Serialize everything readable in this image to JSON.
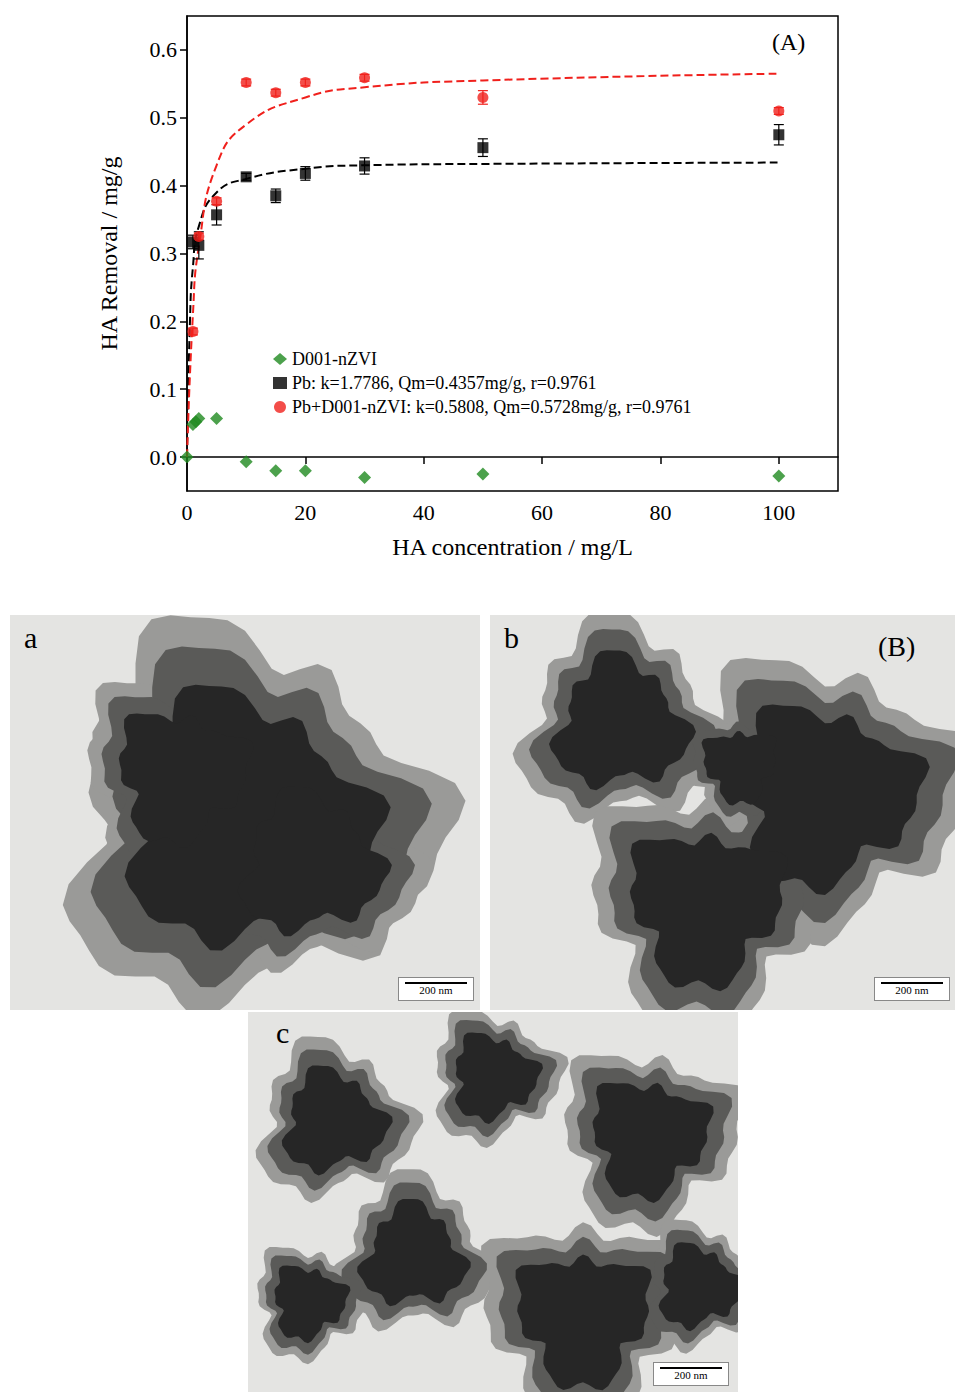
{
  "chart_data": {
    "type": "scatter",
    "annotation": "(A)",
    "x_label": "HA concentration / mg/L",
    "y_label": "HA Removal / mg/g",
    "xlim": [
      0,
      110
    ],
    "xticks": [
      0,
      20,
      40,
      60,
      80,
      100
    ],
    "ylim": [
      -0.05,
      0.65
    ],
    "yticks": [
      {
        "value": 0,
        "label": "0.0"
      },
      0.1,
      0.2,
      0.3,
      0.4,
      0.5,
      0.6
    ],
    "grid": false,
    "legend": "lower left",
    "series": [
      {
        "name": "D001-nZVI",
        "type": "scatter",
        "marker": "diamond",
        "color": "#1f8a1f",
        "x": [
          0,
          1,
          1.5,
          2,
          5,
          10,
          15,
          20,
          30,
          50,
          100
        ],
        "values": [
          0,
          0.048,
          0.052,
          0.057,
          0.057,
          -0.007,
          -0.02,
          -0.02,
          -0.03,
          -0.025,
          -0.028
        ]
      },
      {
        "name": "Pb: k=1.7786, Qm=0.4357mg/g, r=0.9761",
        "type": "scatter",
        "marker": "square",
        "color": "#000000",
        "x": [
          1,
          2,
          5,
          10,
          15,
          20,
          30,
          50,
          100
        ],
        "values": [
          0.317,
          0.312,
          0.357,
          0.413,
          0.385,
          0.418,
          0.429,
          0.456,
          0.475
        ],
        "errors": [
          0.01,
          0.02,
          0.015,
          0.005,
          0.01,
          0.01,
          0.012,
          0.013,
          0.015
        ]
      },
      {
        "name": "Pb+D001-nZVI: k=0.5808, Qm=0.5728mg/g, r=0.9761",
        "type": "scatter",
        "marker": "circle",
        "color": "#f0201c",
        "x": [
          1,
          2,
          5,
          10,
          15,
          20,
          30,
          50,
          100
        ],
        "values": [
          0.185,
          0.325,
          0.377,
          0.552,
          0.537,
          0.552,
          0.559,
          0.53,
          0.51
        ],
        "errors": [
          0.005,
          0.005,
          0.005,
          0.005,
          0.005,
          0.005,
          0.005,
          0.01,
          0.005
        ]
      },
      {
        "type": "line",
        "line_style": "dashed",
        "color": "#000000",
        "x": [
          0,
          0.5,
          1,
          2,
          5,
          10,
          20,
          30,
          50,
          100
        ],
        "values": [
          0,
          0.2,
          0.28,
          0.34,
          0.39,
          0.41,
          0.425,
          0.43,
          0.432,
          0.434
        ]
      },
      {
        "type": "line",
        "line_style": "dashed",
        "color": "#f0201c",
        "x": [
          0,
          1,
          2,
          5,
          10,
          20,
          30,
          50,
          100
        ],
        "values": [
          0,
          0.21,
          0.31,
          0.43,
          0.49,
          0.53,
          0.545,
          0.555,
          0.565
        ]
      }
    ]
  },
  "micrographs": {
    "tag": "(B)",
    "panels": [
      {
        "label": "a",
        "scale_bar": "200 nm"
      },
      {
        "label": "b",
        "scale_bar": "200 nm"
      },
      {
        "label": "c",
        "scale_bar": "200 nm"
      }
    ]
  }
}
